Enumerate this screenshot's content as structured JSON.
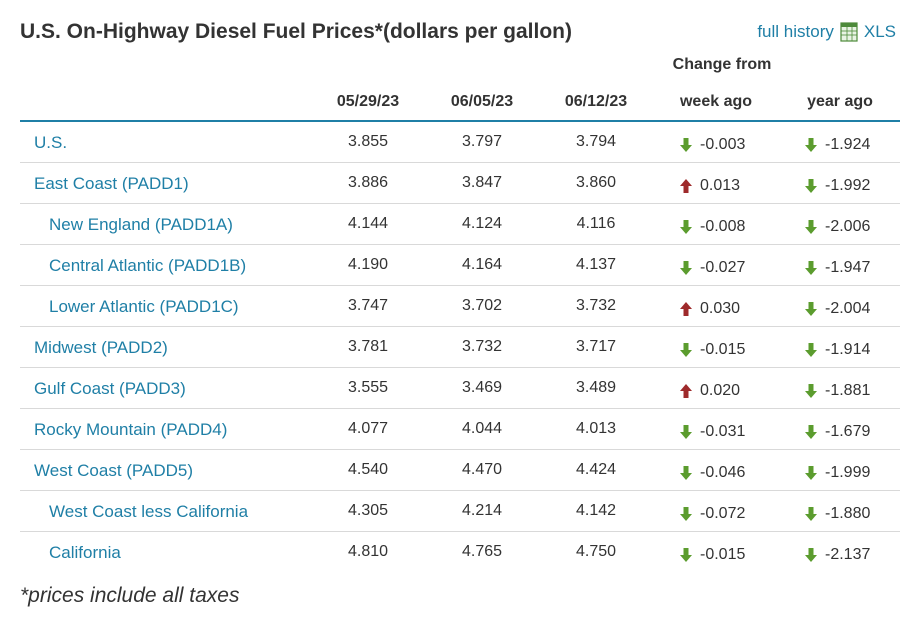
{
  "header": {
    "title": "U.S. On-Highway Diesel Fuel Prices*(dollars per gallon)",
    "full_history_label": "full history",
    "xls_label": "XLS"
  },
  "columns": {
    "change_from": "Change from",
    "dates": [
      "05/29/23",
      "06/05/23",
      "06/12/23"
    ],
    "week_ago": "week ago",
    "year_ago": "year ago"
  },
  "colors": {
    "accent": "#1f7fa6",
    "down": "#5b9c2e",
    "up": "#9e2a2b"
  },
  "rows": [
    {
      "name": "U.S.",
      "level": 0,
      "values": [
        "3.855",
        "3.797",
        "3.794"
      ],
      "week_change": "-0.003",
      "week_dir": "down",
      "year_change": "-1.924",
      "year_dir": "down"
    },
    {
      "name": "East Coast (PADD1)",
      "level": 0,
      "values": [
        "3.886",
        "3.847",
        "3.860"
      ],
      "week_change": "0.013",
      "week_dir": "up",
      "year_change": "-1.992",
      "year_dir": "down"
    },
    {
      "name": "New England (PADD1A)",
      "level": 1,
      "values": [
        "4.144",
        "4.124",
        "4.116"
      ],
      "week_change": "-0.008",
      "week_dir": "down",
      "year_change": "-2.006",
      "year_dir": "down"
    },
    {
      "name": "Central Atlantic (PADD1B)",
      "level": 1,
      "values": [
        "4.190",
        "4.164",
        "4.137"
      ],
      "week_change": "-0.027",
      "week_dir": "down",
      "year_change": "-1.947",
      "year_dir": "down"
    },
    {
      "name": "Lower Atlantic (PADD1C)",
      "level": 1,
      "values": [
        "3.747",
        "3.702",
        "3.732"
      ],
      "week_change": "0.030",
      "week_dir": "up",
      "year_change": "-2.004",
      "year_dir": "down"
    },
    {
      "name": "Midwest (PADD2)",
      "level": 0,
      "values": [
        "3.781",
        "3.732",
        "3.717"
      ],
      "week_change": "-0.015",
      "week_dir": "down",
      "year_change": "-1.914",
      "year_dir": "down"
    },
    {
      "name": "Gulf Coast (PADD3)",
      "level": 0,
      "values": [
        "3.555",
        "3.469",
        "3.489"
      ],
      "week_change": "0.020",
      "week_dir": "up",
      "year_change": "-1.881",
      "year_dir": "down"
    },
    {
      "name": "Rocky Mountain (PADD4)",
      "level": 0,
      "values": [
        "4.077",
        "4.044",
        "4.013"
      ],
      "week_change": "-0.031",
      "week_dir": "down",
      "year_change": "-1.679",
      "year_dir": "down"
    },
    {
      "name": "West Coast (PADD5)",
      "level": 0,
      "values": [
        "4.540",
        "4.470",
        "4.424"
      ],
      "week_change": "-0.046",
      "week_dir": "down",
      "year_change": "-1.999",
      "year_dir": "down"
    },
    {
      "name": "West Coast less California",
      "level": 1,
      "values": [
        "4.305",
        "4.214",
        "4.142"
      ],
      "week_change": "-0.072",
      "week_dir": "down",
      "year_change": "-1.880",
      "year_dir": "down"
    },
    {
      "name": "California",
      "level": 1,
      "values": [
        "4.810",
        "4.765",
        "4.750"
      ],
      "week_change": "-0.015",
      "week_dir": "down",
      "year_change": "-2.137",
      "year_dir": "down"
    }
  ],
  "footnote": "*prices include all taxes"
}
